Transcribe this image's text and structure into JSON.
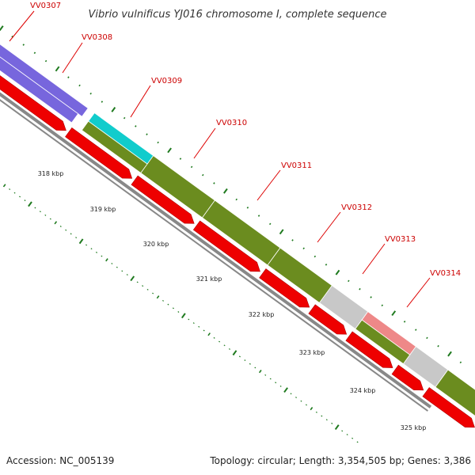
{
  "title": "Vibrio vulnificus YJ016 chromosome I, complete sequence",
  "footer": {
    "accession": "Accession: NC_005139",
    "summary": "Topology: circular; Length: 3,354,505 bp; Genes: 3,386"
  },
  "colors": {
    "backbone": "#888888",
    "cds_forward": "#ee0000",
    "gene_label": "#cc0000",
    "label_line": "#dd0000",
    "tick": "#1f7a1f",
    "cog_blue": "#7766dd",
    "cog_cyan": "#11cccc",
    "cog_olive": "#6b8c1f",
    "cog_grey": "#c8c8c8",
    "cog_pink": "#ee8888"
  },
  "genes": [
    {
      "label": "VV0307",
      "cog_color": "#7766dd"
    },
    {
      "label": "VV0308",
      "cog_color": "#7766dd"
    },
    {
      "label": "VV0309",
      "cog_color": "#11cccc"
    },
    {
      "label": "VV0310",
      "cog_color": "#6b8c1f"
    },
    {
      "label": "VV0311",
      "cog_color": "#6b8c1f"
    },
    {
      "label": "VV0312",
      "cog_color": "#6b8c1f"
    },
    {
      "label": "VV0313",
      "cog_color": "#c8c8c8"
    },
    {
      "label": "VV0314",
      "cog_color": "#ee8888"
    }
  ],
  "kbp_labels": [
    "318 kbp",
    "319 kbp",
    "320 kbp",
    "321 kbp",
    "322 kbp",
    "323 kbp",
    "324 kbp",
    "325 kbp"
  ]
}
